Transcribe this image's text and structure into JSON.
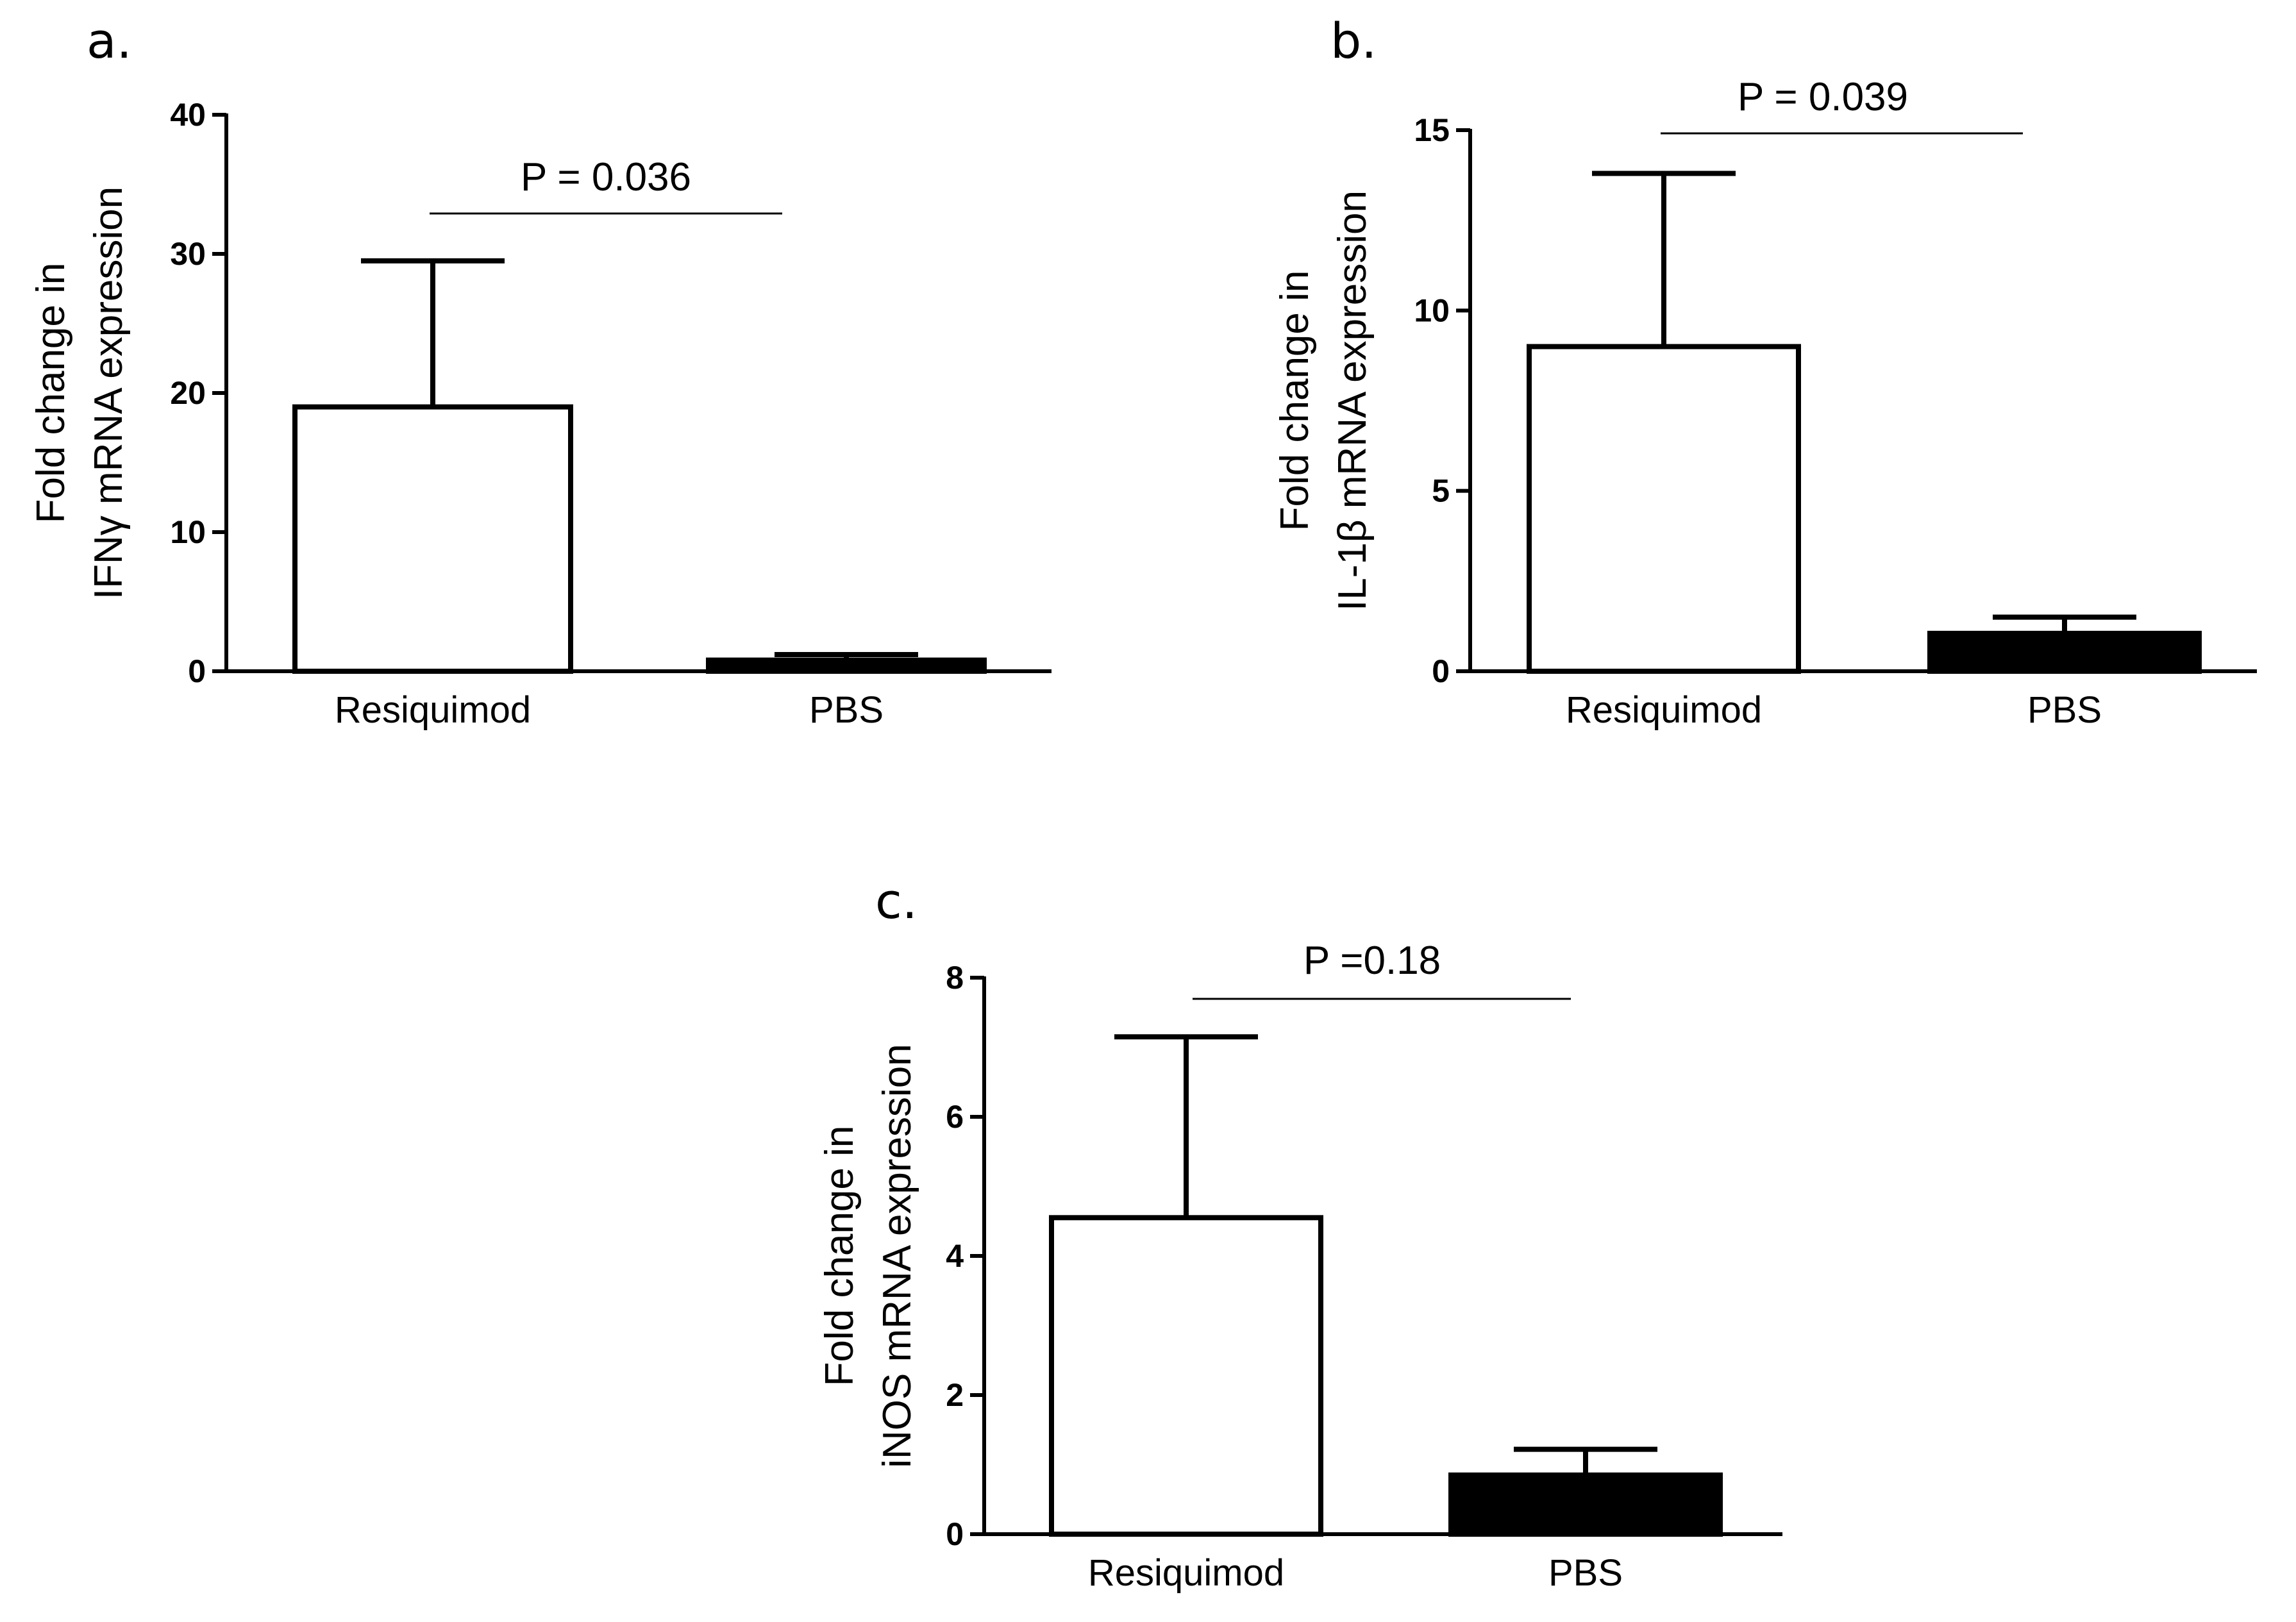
{
  "chart_data": [
    {
      "type": "bar",
      "panel_label": "a.",
      "ylabel_lines": [
        "Fold change in",
        "IFNγ mRNA expression"
      ],
      "categories": [
        "Resiquimod",
        "PBS"
      ],
      "values": [
        19,
        0.8
      ],
      "error_upper": [
        29.5,
        1.2
      ],
      "bar_fill": [
        "#ffffff",
        "#000000"
      ],
      "ylim": [
        0,
        40
      ],
      "yticks": [
        0,
        10,
        20,
        30,
        40
      ],
      "annotation": "P = 0.036"
    },
    {
      "type": "bar",
      "panel_label": "b.",
      "ylabel_lines": [
        "Fold change in",
        "IL-1β mRNA expression"
      ],
      "categories": [
        "Resiquimod",
        "PBS"
      ],
      "values": [
        9,
        1.05
      ],
      "error_upper": [
        13.8,
        1.5
      ],
      "bar_fill": [
        "#ffffff",
        "#000000"
      ],
      "ylim": [
        0,
        15
      ],
      "yticks": [
        0,
        5,
        10,
        15
      ],
      "annotation": "P = 0.039"
    },
    {
      "type": "bar",
      "panel_label": "c.",
      "ylabel_lines": [
        "Fold change in",
        "iNOS mRNA expression"
      ],
      "categories": [
        "Resiquimod",
        "PBS"
      ],
      "values": [
        4.55,
        0.85
      ],
      "error_upper": [
        7.15,
        1.22
      ],
      "bar_fill": [
        "#ffffff",
        "#000000"
      ],
      "ylim": [
        0,
        8
      ],
      "yticks": [
        0,
        2,
        4,
        6,
        8
      ],
      "annotation": "P =0.18"
    }
  ]
}
